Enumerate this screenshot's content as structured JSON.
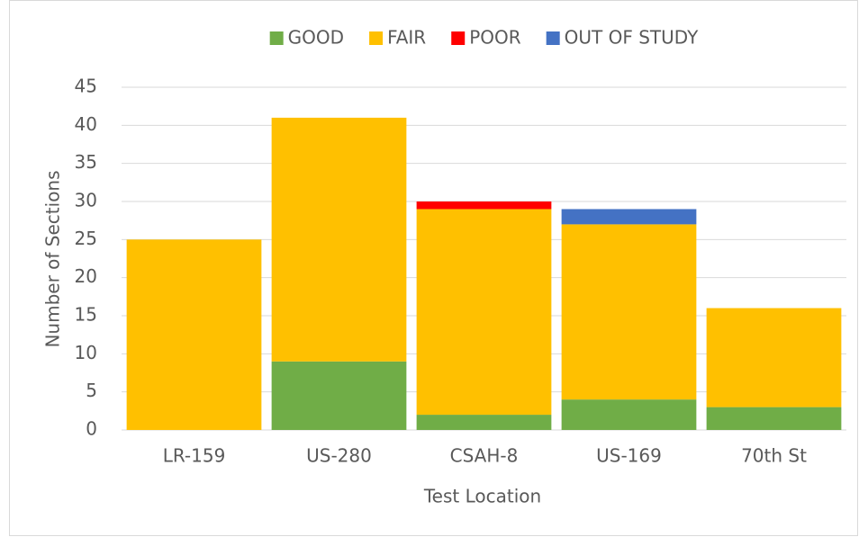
{
  "chart_data": {
    "type": "stacked-bar",
    "xlabel": "Test Location",
    "ylabel": "Number of Sections",
    "categories": [
      "LR-159",
      "US-280",
      "CSAH-8",
      "US-169",
      "70th St"
    ],
    "series": [
      {
        "name": "GOOD",
        "color": "#70ad47",
        "values": [
          0,
          9,
          2,
          4,
          3
        ]
      },
      {
        "name": "FAIR",
        "color": "#ffc000",
        "values": [
          25,
          32,
          27,
          23,
          13
        ]
      },
      {
        "name": "POOR",
        "color": "#ff0000",
        "values": [
          0,
          0,
          1,
          0,
          0
        ]
      },
      {
        "name": "OUT OF STUDY",
        "color": "#4472c4",
        "values": [
          0,
          0,
          0,
          2,
          0
        ]
      }
    ],
    "ylim": [
      0,
      45
    ],
    "yticks": [
      0,
      5,
      10,
      15,
      20,
      25,
      30,
      35,
      40,
      45
    ],
    "grid": true,
    "legend": "top"
  }
}
